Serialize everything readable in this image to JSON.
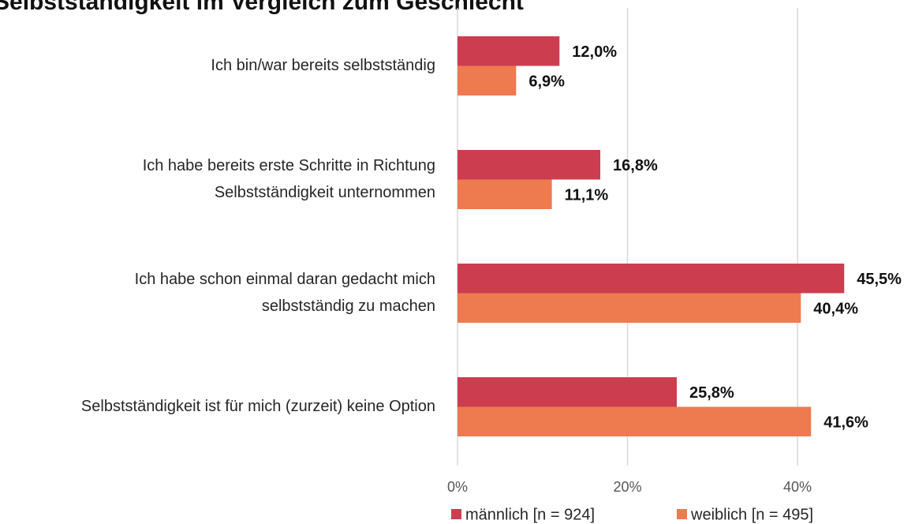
{
  "chart_data": {
    "type": "hbar",
    "title": "Selbstständigkeit im Vergleich zum Geschlecht",
    "categories": [
      [
        "Ich bin/war bereits selbstständig"
      ],
      [
        "Ich habe bereits erste Schritte in Richtung",
        "Selbstständigkeit unternommen"
      ],
      [
        "Ich habe schon einmal daran gedacht mich",
        "selbstständig zu machen"
      ],
      [
        "Selbstständigkeit ist für mich (zurzeit) keine Option"
      ]
    ],
    "series": [
      {
        "name": "männlich [n = 924]",
        "color": "#cc3d50",
        "values": [
          12.0,
          16.8,
          45.5,
          25.8
        ],
        "value_labels": [
          "12,0%",
          "16,8%",
          "45,5%",
          "25,8%"
        ]
      },
      {
        "name": "weiblich [n = 495]",
        "color": "#ee7a50",
        "values": [
          6.9,
          11.1,
          40.4,
          41.6
        ],
        "value_labels": [
          "6,9%",
          "11,1%",
          "40,4%",
          "41,6%"
        ]
      }
    ],
    "xlim": [
      0,
      50
    ],
    "xticks": [
      {
        "value": 0,
        "label": "0%"
      },
      {
        "value": 20,
        "label": "20%"
      },
      {
        "value": 40,
        "label": "40%"
      }
    ],
    "grid": true,
    "legend": "bottom"
  }
}
